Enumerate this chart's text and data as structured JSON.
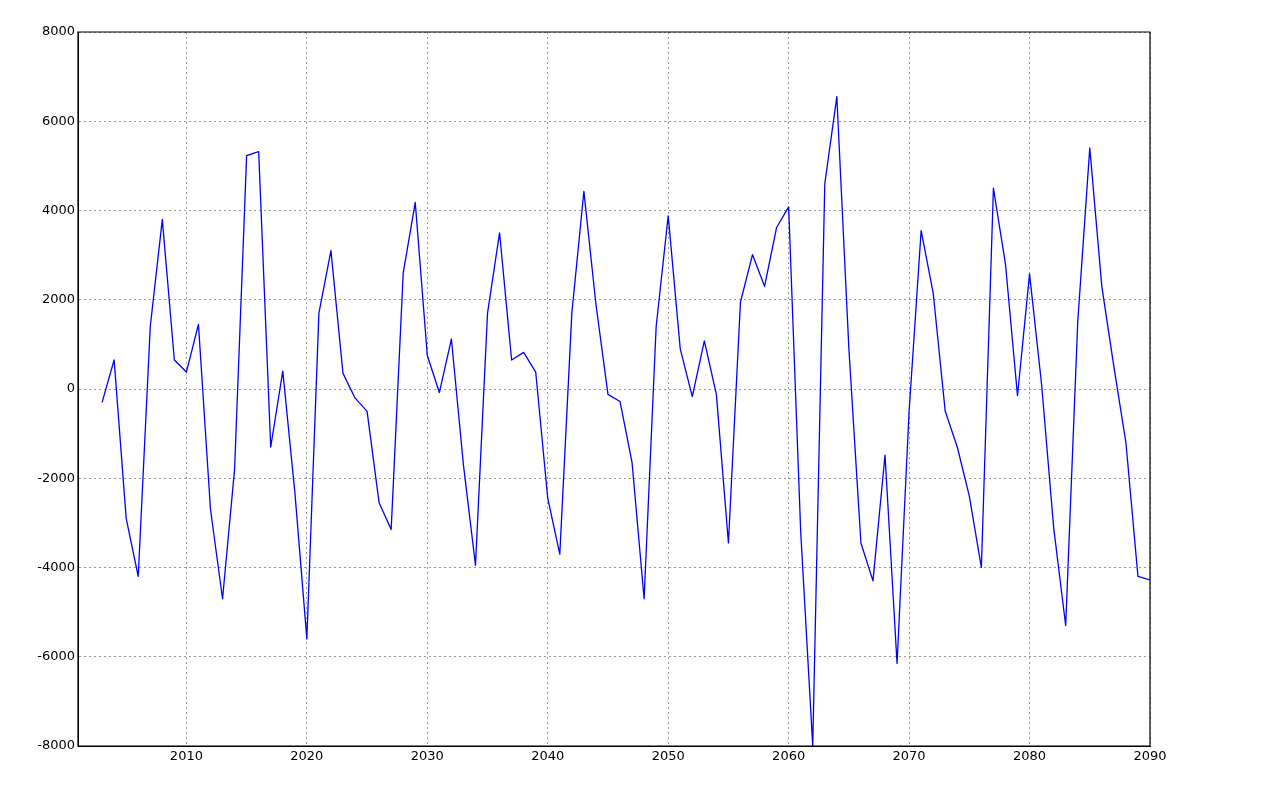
{
  "chart_data": {
    "type": "line",
    "x": [
      2003,
      2004,
      2005,
      2006,
      2007,
      2008,
      2009,
      2010,
      2011,
      2012,
      2013,
      2014,
      2015,
      2016,
      2017,
      2018,
      2019,
      2020,
      2021,
      2022,
      2023,
      2024,
      2025,
      2026,
      2027,
      2028,
      2029,
      2030,
      2031,
      2032,
      2033,
      2034,
      2035,
      2036,
      2037,
      2038,
      2039,
      2040,
      2041,
      2042,
      2043,
      2044,
      2045,
      2046,
      2047,
      2048,
      2049,
      2050,
      2051,
      2052,
      2053,
      2054,
      2055,
      2056,
      2057,
      2058,
      2059,
      2060,
      2061,
      2062,
      2063,
      2064,
      2065,
      2066,
      2067,
      2068,
      2069,
      2070,
      2071,
      2072,
      2073,
      2074,
      2075,
      2076,
      2077,
      2078,
      2079,
      2080,
      2081,
      2082,
      2083,
      2084,
      2085,
      2086,
      2087,
      2088,
      2089,
      2090
    ],
    "values": [
      -300,
      650,
      -2900,
      -4200,
      1400,
      3800,
      650,
      380,
      1450,
      -2700,
      -4700,
      -1800,
      5230,
      5320,
      -1300,
      400,
      -2300,
      -5600,
      1700,
      3100,
      350,
      -200,
      -500,
      -2550,
      -3150,
      2600,
      4180,
      750,
      -80,
      1120,
      -1700,
      -3950,
      1700,
      3500,
      650,
      820,
      380,
      -2450,
      -3700,
      1700,
      4430,
      1900,
      -120,
      -280,
      -1650,
      -4700,
      1400,
      3880,
      900,
      -170,
      1080,
      -120,
      -3450,
      1950,
      3010,
      2300,
      3620,
      4080,
      -3200,
      -8000,
      4600,
      6550,
      900,
      -3450,
      -4300,
      -1480,
      -6150,
      -500,
      3550,
      2150,
      -500,
      -1300,
      -2400,
      -4000,
      4500,
      2800,
      -150,
      2580,
      100,
      -3100,
      -5300,
      1500,
      5400,
      2300,
      500,
      -1200,
      -4200,
      -4280
    ],
    "color": "#0000ff",
    "xlim": [
      2001,
      2090
    ],
    "xticks": [
      2010,
      2020,
      2030,
      2040,
      2050,
      2060,
      2070,
      2080,
      2090
    ],
    "ylim": [
      -8000,
      8000
    ],
    "yticks": [
      -8000,
      -6000,
      -4000,
      -2000,
      0,
      2000,
      4000,
      6000,
      8000
    ],
    "grid": true
  }
}
